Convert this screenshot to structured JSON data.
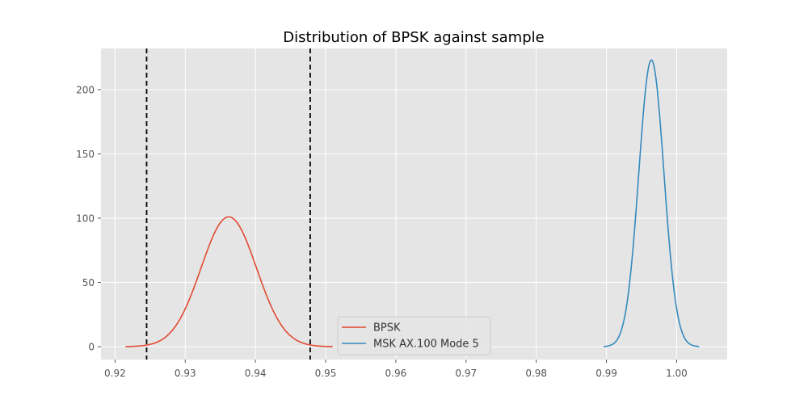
{
  "chart_data": {
    "type": "line",
    "title": "Distribution of BPSK against sample",
    "xlabel": "",
    "ylabel": "",
    "xlim": [
      0.918,
      1.0072
    ],
    "ylim": [
      -10,
      232
    ],
    "grid": true,
    "style": "ggplot",
    "x_ticks": [
      0.92,
      0.93,
      0.94,
      0.95,
      0.96,
      0.97,
      0.98,
      0.99,
      1.0
    ],
    "x_tick_labels": [
      "0.92",
      "0.93",
      "0.94",
      "0.95",
      "0.96",
      "0.97",
      "0.98",
      "0.99",
      "1.00"
    ],
    "y_ticks": [
      0,
      50,
      100,
      150,
      200
    ],
    "y_tick_labels": [
      "0",
      "50",
      "100",
      "150",
      "200"
    ],
    "legend": {
      "placement": "lower-center",
      "entries": [
        "BPSK",
        "MSK AX.100 Mode 5"
      ]
    },
    "series": [
      {
        "name": "BPSK",
        "color": "#E24A33",
        "distribution": "normal",
        "mean": 0.9362,
        "peak": 101,
        "std": 0.00395,
        "x_range": [
          0.9215,
          0.951
        ]
      },
      {
        "name": "MSK AX.100 Mode 5",
        "color": "#348ABD",
        "distribution": "normal",
        "mean": 0.9964,
        "peak": 223,
        "std": 0.00179,
        "x_range": [
          0.9896,
          1.0032
        ]
      }
    ],
    "vlines": [
      0.9245,
      0.9478
    ],
    "vline_color": "#000000",
    "vline_style": "dashed"
  }
}
